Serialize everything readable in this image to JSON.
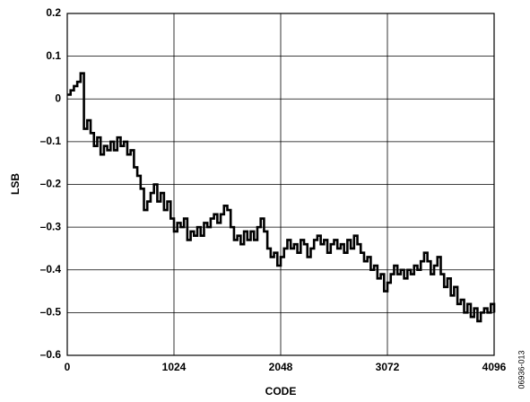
{
  "chart_data": {
    "type": "line",
    "step": true,
    "xlabel": "CODE",
    "ylabel": "LSB",
    "annotation": "06936-013",
    "xlim": [
      0,
      4096
    ],
    "xticks": [
      0,
      1024,
      2048,
      3072,
      4096
    ],
    "ylim": [
      -0.6,
      0.2
    ],
    "yticks": [
      {
        "value": -0.6,
        "label": "–0.6"
      },
      {
        "value": -0.5,
        "label": "–0.5"
      },
      {
        "value": -0.4,
        "label": "–0.4"
      },
      {
        "value": -0.3,
        "label": "–0.3"
      },
      {
        "value": -0.2,
        "label": "–0.2"
      },
      {
        "value": -0.1,
        "label": "–0.1"
      },
      0,
      0.1,
      0.2
    ],
    "grid": true,
    "series": [
      {
        "color": "#000000",
        "x": [
          0,
          32,
          64,
          96,
          128,
          160,
          192,
          224,
          256,
          288,
          320,
          352,
          384,
          416,
          448,
          480,
          512,
          544,
          576,
          608,
          640,
          672,
          704,
          736,
          768,
          800,
          832,
          864,
          896,
          928,
          960,
          992,
          1024,
          1056,
          1088,
          1120,
          1152,
          1184,
          1216,
          1248,
          1280,
          1312,
          1344,
          1376,
          1408,
          1440,
          1472,
          1504,
          1536,
          1568,
          1600,
          1632,
          1664,
          1696,
          1728,
          1760,
          1792,
          1824,
          1856,
          1888,
          1920,
          1952,
          1984,
          2016,
          2048,
          2080,
          2112,
          2144,
          2176,
          2208,
          2240,
          2272,
          2304,
          2336,
          2368,
          2400,
          2432,
          2464,
          2496,
          2528,
          2560,
          2592,
          2624,
          2656,
          2688,
          2720,
          2752,
          2784,
          2816,
          2848,
          2880,
          2912,
          2944,
          2976,
          3008,
          3040,
          3072,
          3104,
          3136,
          3168,
          3200,
          3232,
          3264,
          3296,
          3328,
          3360,
          3392,
          3424,
          3456,
          3488,
          3520,
          3552,
          3584,
          3616,
          3648,
          3680,
          3712,
          3744,
          3776,
          3808,
          3840,
          3872,
          3904,
          3936,
          3968,
          4000,
          4032,
          4064,
          4096
        ],
        "values": [
          0.01,
          0.02,
          0.03,
          0.04,
          0.06,
          -0.07,
          -0.05,
          -0.08,
          -0.11,
          -0.09,
          -0.13,
          -0.11,
          -0.12,
          -0.1,
          -0.12,
          -0.09,
          -0.11,
          -0.1,
          -0.13,
          -0.12,
          -0.16,
          -0.18,
          -0.21,
          -0.26,
          -0.24,
          -0.22,
          -0.2,
          -0.24,
          -0.22,
          -0.26,
          -0.24,
          -0.28,
          -0.31,
          -0.29,
          -0.3,
          -0.28,
          -0.33,
          -0.31,
          -0.32,
          -0.3,
          -0.32,
          -0.29,
          -0.3,
          -0.28,
          -0.27,
          -0.29,
          -0.27,
          -0.25,
          -0.26,
          -0.3,
          -0.33,
          -0.32,
          -0.34,
          -0.31,
          -0.33,
          -0.31,
          -0.33,
          -0.3,
          -0.28,
          -0.31,
          -0.35,
          -0.37,
          -0.36,
          -0.39,
          -0.37,
          -0.35,
          -0.33,
          -0.35,
          -0.34,
          -0.36,
          -0.33,
          -0.34,
          -0.37,
          -0.35,
          -0.33,
          -0.32,
          -0.34,
          -0.33,
          -0.36,
          -0.34,
          -0.33,
          -0.35,
          -0.34,
          -0.36,
          -0.33,
          -0.35,
          -0.32,
          -0.34,
          -0.36,
          -0.38,
          -0.37,
          -0.4,
          -0.39,
          -0.42,
          -0.41,
          -0.45,
          -0.43,
          -0.41,
          -0.39,
          -0.41,
          -0.4,
          -0.42,
          -0.4,
          -0.41,
          -0.39,
          -0.4,
          -0.38,
          -0.36,
          -0.38,
          -0.41,
          -0.39,
          -0.37,
          -0.41,
          -0.44,
          -0.42,
          -0.46,
          -0.44,
          -0.48,
          -0.47,
          -0.5,
          -0.48,
          -0.51,
          -0.49,
          -0.52,
          -0.5,
          -0.49,
          -0.5,
          -0.48,
          -0.5
        ]
      }
    ]
  }
}
